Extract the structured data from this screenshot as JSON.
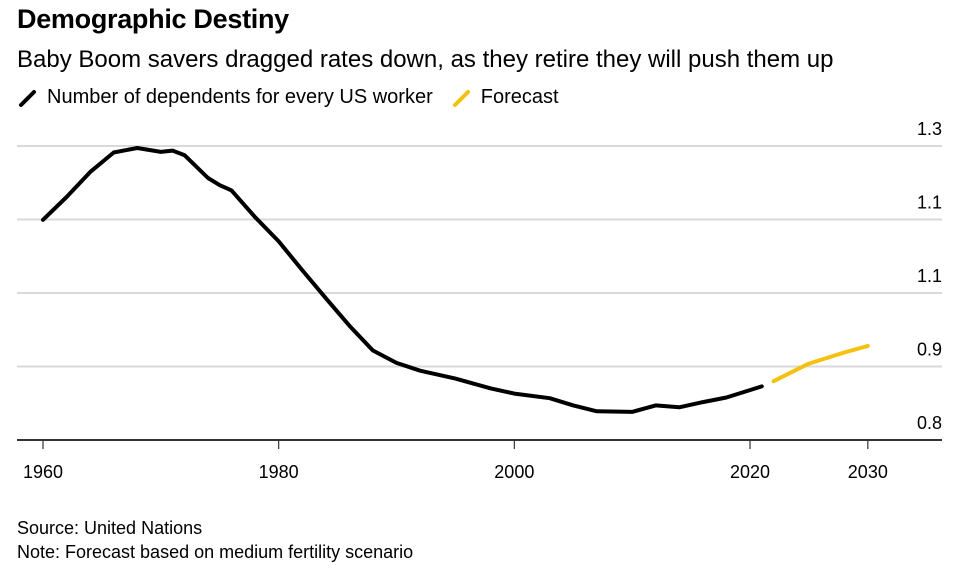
{
  "header": {
    "title": "Demographic Destiny",
    "subtitle": "Baby Boom savers dragged rates down, as they retire they will push them up"
  },
  "legend": [
    {
      "label": "Number of dependents for every US worker",
      "color": "#000000"
    },
    {
      "label": "Forecast",
      "color": "#f5c10e"
    }
  ],
  "footer": {
    "source": "Source: United Nations",
    "note": "Note: Forecast based on medium fertility scenario"
  },
  "chart_data": {
    "type": "line",
    "title": "Demographic Destiny",
    "subtitle": "Baby Boom savers dragged rates down, as they retire they will push them up",
    "xlabel": "",
    "ylabel": "",
    "xlim": [
      1958,
      2036
    ],
    "ylim": [
      0.8,
      1.25
    ],
    "x_ticks": [
      1960,
      1980,
      2000,
      2020,
      2030
    ],
    "x_tick_labels": [
      "1960",
      "1980",
      "2000",
      "2020",
      "2030"
    ],
    "y_ticks": [
      0.8,
      0.9125,
      1.025,
      1.1375,
      1.25
    ],
    "y_tick_labels": [
      "0.8",
      "0.9",
      "1.1",
      "1.1",
      "1.3"
    ],
    "grid": true,
    "legend_position": "top-left",
    "series": [
      {
        "name": "Number of dependents for every US worker",
        "color": "#000000",
        "x": [
          1960,
          1962,
          1964,
          1966,
          1968,
          1970,
          1971,
          1972,
          1974,
          1975,
          1976,
          1978,
          1980,
          1982,
          1984,
          1986,
          1988,
          1990,
          1992,
          1995,
          1998,
          2000,
          2003,
          2005,
          2007,
          2010,
          2012,
          2014,
          2016,
          2018,
          2021
        ],
        "y": [
          1.137,
          1.172,
          1.21,
          1.24,
          1.247,
          1.241,
          1.243,
          1.236,
          1.201,
          1.19,
          1.182,
          1.141,
          1.104,
          1.06,
          1.017,
          0.975,
          0.937,
          0.918,
          0.906,
          0.894,
          0.879,
          0.871,
          0.864,
          0.853,
          0.844,
          0.843,
          0.853,
          0.85,
          0.858,
          0.865,
          0.882
        ]
      },
      {
        "name": "Forecast",
        "color": "#f5c10e",
        "x": [
          2022,
          2025,
          2028,
          2030
        ],
        "y": [
          0.89,
          0.917,
          0.934,
          0.944
        ]
      }
    ]
  }
}
